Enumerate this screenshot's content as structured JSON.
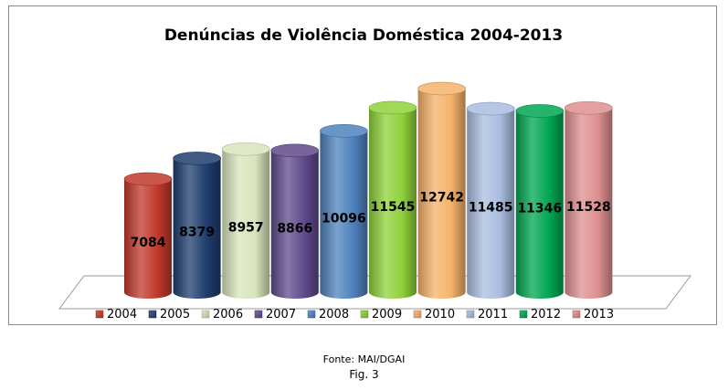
{
  "chart_data": {
    "type": "bar",
    "title": "Denúncias de Violência Doméstica 2004-2013",
    "categories": [
      "2004",
      "2005",
      "2006",
      "2007",
      "2008",
      "2009",
      "2010",
      "2011",
      "2012",
      "2013"
    ],
    "values": [
      7084,
      8379,
      8957,
      8866,
      10096,
      11545,
      12742,
      11485,
      11346,
      11528
    ],
    "colors": [
      "#c0392b",
      "#1f3d6e",
      "#d8e4bc",
      "#5f4a8b",
      "#4f81bd",
      "#8fd13a",
      "#f6b26b",
      "#a9bde0",
      "#00a651",
      "#de8f8f"
    ],
    "legend": [
      "2004",
      "2005",
      "2006",
      "2007",
      "2008",
      "2009",
      "2010",
      "2011",
      "2012",
      "2013"
    ],
    "legend_position": "bottom",
    "xlabel": "",
    "ylabel": "",
    "ylim": [
      0,
      14000
    ],
    "grid": false
  },
  "caption": {
    "source": "Fonte: MAI/DGAI",
    "figure": "Fig. 3"
  }
}
